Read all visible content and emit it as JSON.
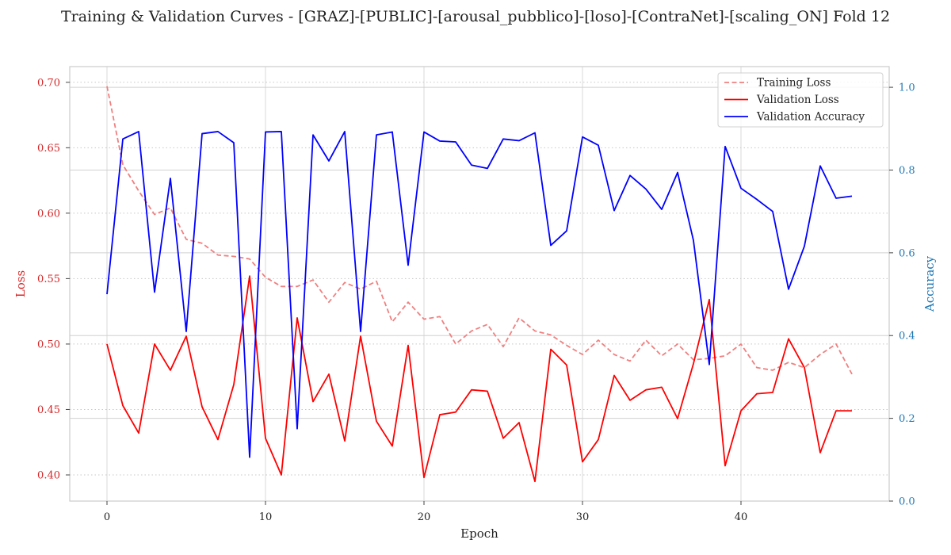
{
  "chart_data": {
    "type": "line",
    "title": "Training & Validation Curves - [GRAZ]-[PUBLIC]-[arousal_pubblico]-[loso]-[ContraNet]-[scaling_ON] Fold 12",
    "xlabel": "Epoch",
    "ylabel_left": "Loss",
    "ylabel_right": "Accuracy",
    "xlim": [
      -2.35,
      49.35
    ],
    "ylim_left": [
      0.38,
      0.712
    ],
    "ylim_right": [
      0.0,
      1.05
    ],
    "x_ticks": [
      0,
      10,
      20,
      30,
      40
    ],
    "y_left_ticks": [
      0.4,
      0.45,
      0.5,
      0.55,
      0.6,
      0.65,
      0.7
    ],
    "y_right_ticks": [
      0.0,
      0.2,
      0.4,
      0.6,
      0.8,
      1.0
    ],
    "grid": true,
    "legend_position": "top-right",
    "colors": {
      "training_loss": "#f08080",
      "validation_loss": "#ff0000",
      "validation_accuracy": "#0000ff",
      "left_axis": "#d62728",
      "right_axis": "#1f77b4"
    },
    "x": [
      0,
      1,
      2,
      3,
      4,
      5,
      6,
      7,
      8,
      9,
      10,
      11,
      12,
      13,
      14,
      15,
      16,
      17,
      18,
      19,
      20,
      21,
      22,
      23,
      24,
      25,
      26,
      27,
      28,
      29,
      30,
      31,
      32,
      33,
      34,
      35,
      36,
      37,
      38,
      39,
      40,
      41,
      42,
      43,
      44,
      45,
      46,
      47
    ],
    "series": [
      {
        "name": "Training Loss",
        "axis": "left",
        "style": "dashed",
        "values": [
          0.697,
          0.637,
          0.617,
          0.599,
          0.604,
          0.58,
          0.577,
          0.568,
          0.567,
          0.565,
          0.551,
          0.544,
          0.544,
          0.549,
          0.532,
          0.547,
          0.542,
          0.548,
          0.517,
          0.532,
          0.519,
          0.521,
          0.5,
          0.51,
          0.515,
          0.498,
          0.52,
          0.51,
          0.507,
          0.499,
          0.492,
          0.503,
          0.492,
          0.487,
          0.503,
          0.491,
          0.5,
          0.488,
          0.489,
          0.491,
          0.5,
          0.482,
          0.48,
          0.486,
          0.482,
          0.492,
          0.5,
          0.477
        ]
      },
      {
        "name": "Validation Loss",
        "axis": "left",
        "style": "solid",
        "values": [
          0.5,
          0.453,
          0.432,
          0.5,
          0.48,
          0.506,
          0.452,
          0.427,
          0.469,
          0.552,
          0.428,
          0.4,
          0.52,
          0.456,
          0.477,
          0.426,
          0.506,
          0.441,
          0.422,
          0.499,
          0.398,
          0.446,
          0.448,
          0.465,
          0.464,
          0.428,
          0.44,
          0.395,
          0.496,
          0.484,
          0.41,
          0.427,
          0.476,
          0.457,
          0.465,
          0.467,
          0.443,
          0.485,
          0.534,
          0.407,
          0.449,
          0.462,
          0.463,
          0.504,
          0.482,
          0.417,
          0.449,
          0.449
        ]
      },
      {
        "name": "Validation Accuracy",
        "axis": "right",
        "style": "solid",
        "values": [
          0.5,
          0.875,
          0.893,
          0.505,
          0.78,
          0.41,
          0.888,
          0.893,
          0.866,
          0.106,
          0.892,
          0.893,
          0.175,
          0.885,
          0.822,
          0.893,
          0.41,
          0.885,
          0.892,
          0.57,
          0.892,
          0.87,
          0.868,
          0.812,
          0.804,
          0.875,
          0.871,
          0.89,
          0.618,
          0.653,
          0.88,
          0.86,
          0.702,
          0.787,
          0.754,
          0.705,
          0.794,
          0.63,
          0.33,
          0.857,
          0.756,
          0.729,
          0.7,
          0.512,
          0.616,
          0.81,
          0.732,
          0.737
        ]
      }
    ]
  }
}
